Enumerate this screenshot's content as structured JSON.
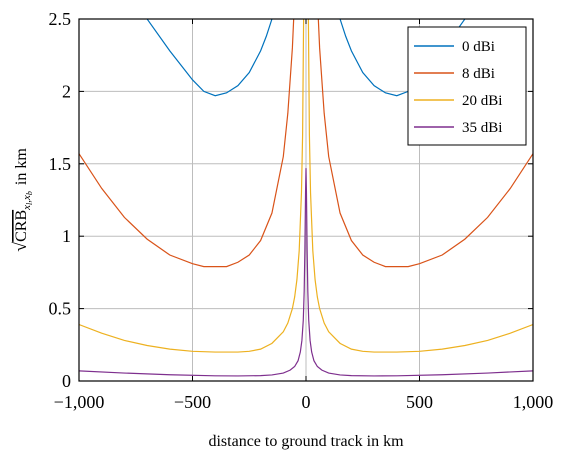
{
  "chart_data": {
    "type": "line",
    "xlabel": "distance to ground track in km",
    "ylabel_text": "CRB",
    "ylabel_subscript": "x",
    "ylabel_sub_1": "l",
    "ylabel_sub_sep": ",",
    "ylabel_sub_2": "b",
    "ylabel_suffix": "in km",
    "xlim": [
      -1000,
      1000
    ],
    "ylim": [
      0,
      2.5
    ],
    "xticks": [
      -1000,
      -500,
      0,
      500,
      1000
    ],
    "xtick_labels": [
      "−1,000",
      "−500",
      "0",
      "500",
      "1,000"
    ],
    "yticks": [
      0,
      0.5,
      1,
      1.5,
      2,
      2.5
    ],
    "ytick_labels": [
      "0",
      "0.5",
      "1",
      "1.5",
      "2",
      "2.5"
    ],
    "grid": true,
    "legend_position": "top-right",
    "series": [
      {
        "name": "0 dBi",
        "color": "#0072BD",
        "x": [
          -1000,
          -700,
          -600,
          -500,
          -450,
          -400,
          -350,
          -300,
          -250,
          -200,
          -175,
          -150,
          -140,
          140,
          150,
          175,
          200,
          250,
          300,
          350,
          400,
          450,
          500,
          600,
          700,
          1000
        ],
        "y": [
          3.6,
          2.5,
          2.28,
          2.08,
          2.0,
          1.97,
          1.99,
          2.04,
          2.13,
          2.28,
          2.38,
          2.5,
          2.56,
          2.56,
          2.5,
          2.38,
          2.28,
          2.13,
          2.04,
          1.99,
          1.97,
          2.0,
          2.08,
          2.28,
          2.5,
          3.6
        ]
      },
      {
        "name": "8 dBi",
        "color": "#D95319",
        "x": [
          -1000,
          -900,
          -800,
          -700,
          -600,
          -500,
          -450,
          -400,
          -350,
          -300,
          -250,
          -200,
          -150,
          -100,
          -80,
          -60,
          -50,
          -40,
          40,
          50,
          60,
          80,
          100,
          150,
          200,
          250,
          300,
          350,
          400,
          450,
          500,
          600,
          700,
          800,
          900,
          1000
        ],
        "y": [
          1.57,
          1.33,
          1.13,
          0.98,
          0.87,
          0.81,
          0.79,
          0.79,
          0.79,
          0.82,
          0.87,
          0.97,
          1.16,
          1.55,
          1.85,
          2.3,
          2.65,
          3.1,
          3.1,
          2.65,
          2.3,
          1.85,
          1.55,
          1.16,
          0.97,
          0.87,
          0.82,
          0.79,
          0.79,
          0.79,
          0.81,
          0.87,
          0.98,
          1.13,
          1.33,
          1.57
        ]
      },
      {
        "name": "20 dBi",
        "color": "#EDB120",
        "x": [
          -1000,
          -900,
          -800,
          -700,
          -600,
          -500,
          -400,
          -300,
          -250,
          -200,
          -150,
          -100,
          -80,
          -60,
          -50,
          -40,
          -30,
          -20,
          -15,
          -10,
          10,
          15,
          20,
          30,
          40,
          50,
          60,
          80,
          100,
          150,
          200,
          250,
          300,
          400,
          500,
          600,
          700,
          800,
          900,
          1000
        ],
        "y": [
          0.39,
          0.33,
          0.28,
          0.245,
          0.22,
          0.205,
          0.2,
          0.2,
          0.205,
          0.22,
          0.26,
          0.34,
          0.4,
          0.5,
          0.58,
          0.7,
          0.9,
          1.3,
          1.7,
          2.6,
          2.6,
          1.7,
          1.3,
          0.9,
          0.7,
          0.58,
          0.5,
          0.4,
          0.34,
          0.26,
          0.22,
          0.205,
          0.2,
          0.2,
          0.205,
          0.22,
          0.245,
          0.28,
          0.33,
          0.39
        ]
      },
      {
        "name": "35 dBi",
        "color": "#7E2F8E",
        "x": [
          -1000,
          -800,
          -600,
          -400,
          -300,
          -200,
          -150,
          -100,
          -70,
          -50,
          -35,
          -25,
          -18,
          -12,
          -8,
          -5,
          -2,
          0,
          2,
          5,
          8,
          12,
          18,
          25,
          35,
          50,
          70,
          100,
          150,
          200,
          300,
          400,
          600,
          800,
          1000
        ],
        "y": [
          0.07,
          0.055,
          0.043,
          0.036,
          0.035,
          0.037,
          0.042,
          0.055,
          0.075,
          0.1,
          0.14,
          0.2,
          0.28,
          0.42,
          0.62,
          0.9,
          1.3,
          1.47,
          1.3,
          0.9,
          0.62,
          0.42,
          0.28,
          0.2,
          0.14,
          0.1,
          0.075,
          0.055,
          0.042,
          0.037,
          0.035,
          0.036,
          0.043,
          0.055,
          0.07
        ]
      }
    ]
  }
}
